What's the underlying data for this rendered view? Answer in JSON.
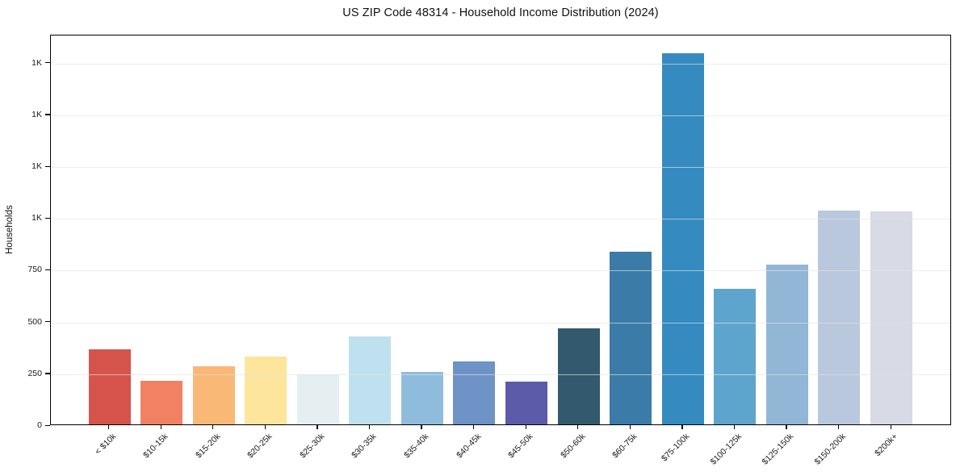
{
  "title": "US ZIP Code 48314 - Household Income Distribution (2024)",
  "chart_data": {
    "type": "bar",
    "title": "US ZIP Code 48314 - Household Income Distribution (2024)",
    "xlabel": "",
    "ylabel": "Households",
    "categories": [
      "< $10k",
      "$10-15k",
      "$15-20k",
      "$20-25k",
      "$25-30k",
      "$30-35k",
      "$35-40k",
      "$40-45k",
      "$45-50k",
      "$50-60k",
      "$60-75k",
      "$75-100k",
      "$100-125k",
      "$125-150k",
      "$150-200k",
      "$200k+"
    ],
    "values": [
      363,
      212,
      282,
      326,
      242,
      424,
      255,
      303,
      205,
      463,
      833,
      1790,
      654,
      770,
      1034,
      1030
    ],
    "bar_colors": [
      "#d6544c",
      "#f08263",
      "#fab877",
      "#fde59c",
      "#e5eff1",
      "#bfe0ee",
      "#8fbcdc",
      "#6e93c6",
      "#5c5baa",
      "#33596e",
      "#3a7ca7",
      "#358bc0",
      "#5ea5cd",
      "#92b6d5",
      "#bac8de",
      "#d8dae5"
    ],
    "ylim": [
      0,
      1885
    ],
    "yticks": [
      {
        "value": 0,
        "label": "0"
      },
      {
        "value": 250,
        "label": "250"
      },
      {
        "value": 500,
        "label": "500"
      },
      {
        "value": 750,
        "label": "750"
      },
      {
        "value": 1000,
        "label": "1K"
      },
      {
        "value": 1250,
        "label": "1K"
      },
      {
        "value": 1500,
        "label": "1K"
      },
      {
        "value": 1750,
        "label": "1K"
      }
    ],
    "grid": "horizontal",
    "legend": "none"
  },
  "colors": {
    "background": "#ffffff",
    "axis": "#000000",
    "grid": "#e4e4e4",
    "text": "#1a1a1a"
  }
}
